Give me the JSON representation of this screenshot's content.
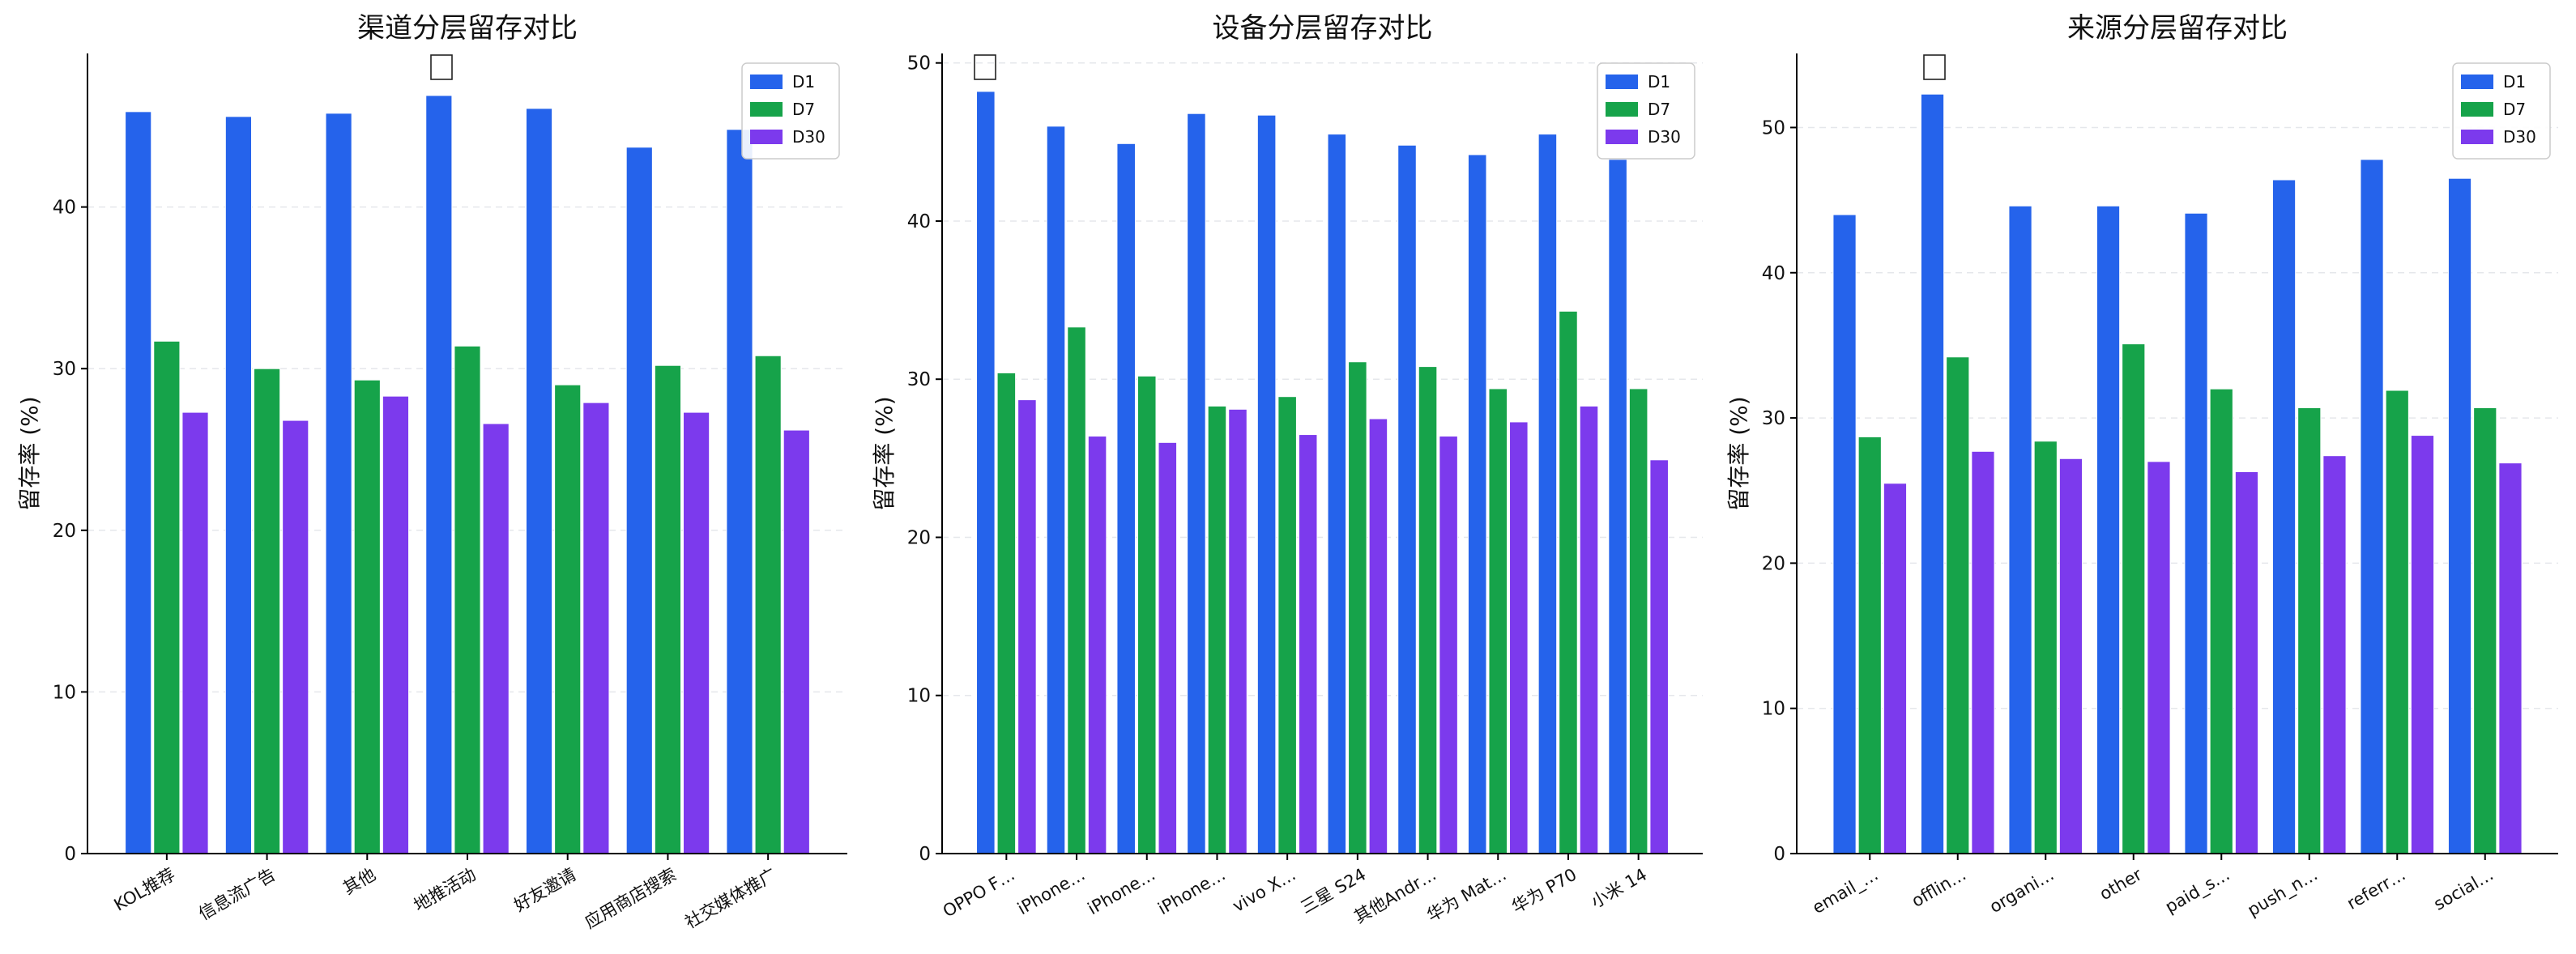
{
  "figure": {
    "background": "#ffffff"
  },
  "colors": {
    "D1": "#2563eb",
    "D7": "#16a34a",
    "D30": "#7c3aed",
    "axis": "#000000",
    "grid": "#e5e7eb"
  },
  "chart_data": [
    {
      "type": "bar",
      "title": "渠道分层留存对比",
      "xlabel": "",
      "ylabel": "留存率 (%)",
      "ylim": [
        0,
        49.5
      ],
      "yticks": [
        0,
        10,
        20,
        30,
        40
      ],
      "grid": "y-dashed",
      "legend_position": "top-right",
      "categories": [
        "KOL推荐",
        "信息流广告",
        "其他",
        "地推活动",
        "好友邀请",
        "应用商店搜索",
        "社交媒体推广"
      ],
      "series": [
        {
          "name": "D1",
          "values": [
            45.9,
            45.6,
            45.8,
            46.9,
            46.1,
            43.7,
            44.8
          ]
        },
        {
          "name": "D7",
          "values": [
            31.7,
            30.0,
            29.3,
            31.4,
            29.0,
            30.2,
            30.8
          ]
        },
        {
          "name": "D30",
          "values": [
            27.3,
            26.8,
            28.3,
            26.6,
            27.9,
            27.3,
            26.2
          ]
        }
      ]
    },
    {
      "type": "bar",
      "title": "设备分层留存对比",
      "xlabel": "",
      "ylabel": "留存率 (%)",
      "ylim": [
        0,
        50.6
      ],
      "yticks": [
        0,
        10,
        20,
        30,
        40,
        50
      ],
      "grid": "y-dashed",
      "legend_position": "top-right",
      "categories": [
        "OPPO F…",
        "iPhone…",
        "iPhone…",
        "iPhone…",
        "vivo X…",
        "三星 S24",
        "其他Andr…",
        "华为 Mat…",
        "华为 P70",
        "小米 14"
      ],
      "series": [
        {
          "name": "D1",
          "values": [
            48.2,
            46.0,
            44.9,
            46.8,
            46.7,
            45.5,
            44.8,
            44.2,
            45.5,
            43.9
          ]
        },
        {
          "name": "D7",
          "values": [
            30.4,
            33.3,
            30.2,
            28.3,
            28.9,
            31.1,
            30.8,
            29.4,
            34.3,
            29.4
          ]
        },
        {
          "name": "D30",
          "values": [
            28.7,
            26.4,
            26.0,
            28.1,
            26.5,
            27.5,
            26.4,
            27.3,
            28.3,
            24.9
          ]
        }
      ]
    },
    {
      "type": "bar",
      "title": "来源分层留存对比",
      "xlabel": "",
      "ylabel": "留存率 (%)",
      "ylim": [
        0,
        55.1
      ],
      "yticks": [
        0,
        10,
        20,
        30,
        40,
        50
      ],
      "grid": "y-dashed",
      "legend_position": "top-right",
      "categories": [
        "email_…",
        "offlin…",
        "organi…",
        "other",
        "paid_s…",
        "push_n…",
        "referr…",
        "social…"
      ],
      "series": [
        {
          "name": "D1",
          "values": [
            44.0,
            52.3,
            44.6,
            44.6,
            44.1,
            46.4,
            47.8,
            46.5
          ]
        },
        {
          "name": "D7",
          "values": [
            28.7,
            34.2,
            28.4,
            35.1,
            32.0,
            30.7,
            31.9,
            30.7
          ]
        },
        {
          "name": "D30",
          "values": [
            25.5,
            27.7,
            27.2,
            27.0,
            26.3,
            27.4,
            28.8,
            26.9
          ]
        }
      ]
    }
  ]
}
